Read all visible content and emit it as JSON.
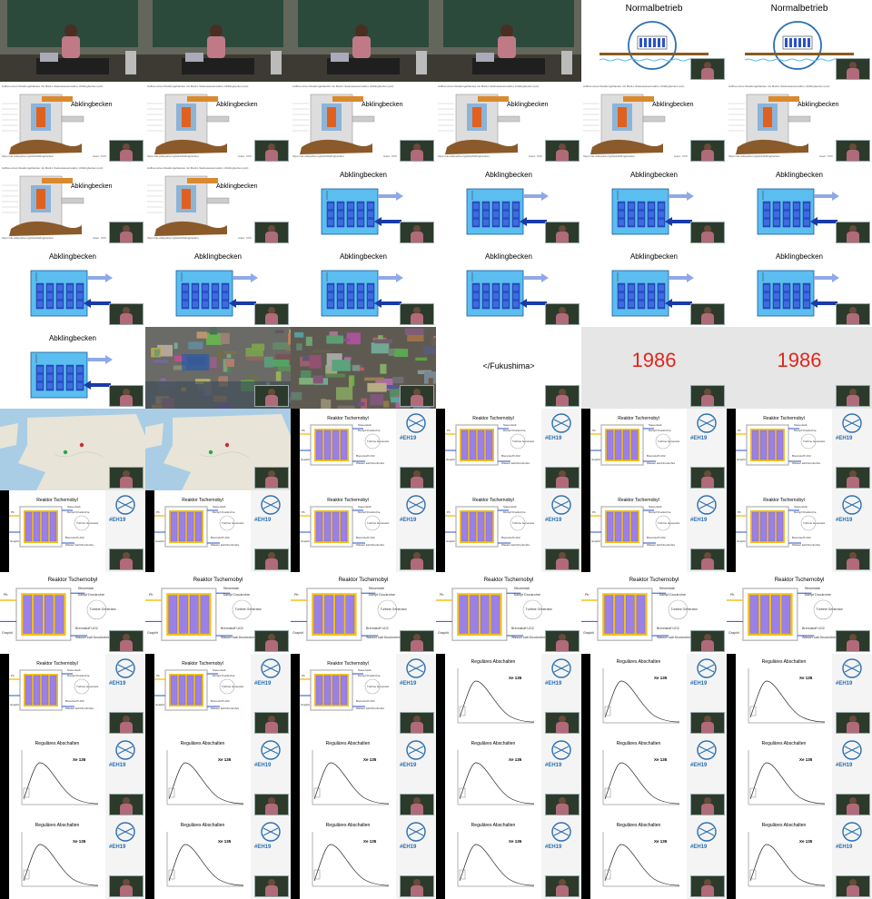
{
  "labels": {
    "normalbetrieb": "Normalbetrieb",
    "abklingbecken": "Abklingbecken",
    "fukushima": "</Fukushima>",
    "year": "1986",
    "reaktor": "Reaktor Tschernobyl",
    "regulaeres": "Reguläres Abschalten",
    "xe": "Xe 135",
    "hashtag": "#EH19",
    "steuerstab": "Steuerstab",
    "dampf": "Dampf Druckrohre",
    "turbine": "Turbine Generator",
    "brennstoff": "Brennstoff UO2",
    "wasser": "Wasser kalt Druckrohre",
    "pb": "Pb",
    "graphit": "Graphit",
    "top_caption": "Aufbau eines Reaktorgebäudes mit Mark-I-Siedewasserreaktor, Abklingbecken (etc)",
    "autor": "Autor: XXX"
  },
  "tiles": [
    "lecture",
    "lecture",
    "lecture",
    "lecture",
    "normal",
    "normal",
    "building",
    "building",
    "building",
    "building",
    "building",
    "building",
    "building",
    "building",
    "pool",
    "pool",
    "pool",
    "pool",
    "pool",
    "pool",
    "pool",
    "pool",
    "pool",
    "pool",
    "pool",
    "photo1",
    "photo2",
    "fukushima",
    "year",
    "year",
    "map",
    "map",
    "reaktor",
    "reaktor",
    "reaktor",
    "reaktor",
    "reaktor",
    "reaktor",
    "reaktor",
    "reaktor",
    "reaktor",
    "reaktor",
    "reaktorbig",
    "reaktorbig",
    "reaktorbig",
    "reaktorbig",
    "reaktorbig",
    "reaktorbig",
    "reaktor",
    "reaktor",
    "reaktor",
    "regular",
    "regular",
    "regular",
    "regular",
    "regular",
    "regular",
    "regular",
    "regular",
    "regular",
    "regular",
    "regular",
    "regular",
    "regular",
    "regular",
    "regular"
  ],
  "colors": {
    "pool_water": "#5bbdf0",
    "fuel_blue": "#2a52c8",
    "reactor_purple": "#9b80e8",
    "reactor_yellow": "#f2c21a",
    "hash_blue": "#2a6fb0",
    "year_red": "#e0261c"
  }
}
